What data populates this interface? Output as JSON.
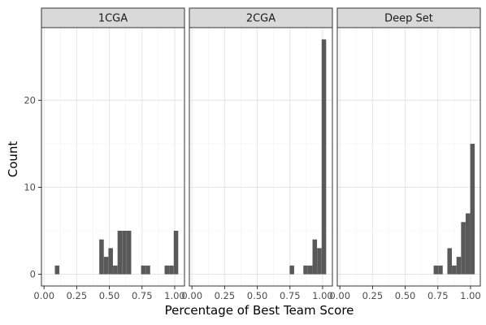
{
  "chart_data": {
    "type": "bar",
    "xlabel": "Percentage of Best Team Score",
    "ylabel": "Count",
    "xlim": [
      -0.02,
      1.075
    ],
    "ylim": [
      -1.35,
      28.35
    ],
    "x_ticks": [
      0.0,
      0.25,
      0.5,
      0.75,
      1.0
    ],
    "x_tick_labels": [
      "0.00",
      "0.25",
      "0.50",
      "0.75",
      "1.00"
    ],
    "y_ticks": [
      0,
      10,
      20
    ],
    "y_tick_labels": [
      "0",
      "10",
      "20"
    ],
    "bin_width": 0.0345,
    "grid": true,
    "bar_color": "#595959",
    "strip_color": "#d9d9d9",
    "panels": [
      {
        "name": "1CGA",
        "bins": [
          {
            "x": 0.1,
            "count": 1
          },
          {
            "x": 0.44,
            "count": 4
          },
          {
            "x": 0.475,
            "count": 2
          },
          {
            "x": 0.51,
            "count": 3
          },
          {
            "x": 0.545,
            "count": 1
          },
          {
            "x": 0.58,
            "count": 5
          },
          {
            "x": 0.615,
            "count": 5
          },
          {
            "x": 0.65,
            "count": 5
          },
          {
            "x": 0.76,
            "count": 1
          },
          {
            "x": 0.795,
            "count": 1
          },
          {
            "x": 0.94,
            "count": 1
          },
          {
            "x": 0.975,
            "count": 1
          },
          {
            "x": 1.01,
            "count": 5
          }
        ]
      },
      {
        "name": "2CGA",
        "bins": [
          {
            "x": 0.765,
            "count": 1
          },
          {
            "x": 0.87,
            "count": 1
          },
          {
            "x": 0.905,
            "count": 1
          },
          {
            "x": 0.94,
            "count": 4
          },
          {
            "x": 0.975,
            "count": 3
          },
          {
            "x": 1.01,
            "count": 27
          }
        ]
      },
      {
        "name": "Deep Set",
        "bins": [
          {
            "x": 0.735,
            "count": 1
          },
          {
            "x": 0.77,
            "count": 1
          },
          {
            "x": 0.84,
            "count": 3
          },
          {
            "x": 0.875,
            "count": 1
          },
          {
            "x": 0.91,
            "count": 2
          },
          {
            "x": 0.945,
            "count": 6
          },
          {
            "x": 0.98,
            "count": 7
          },
          {
            "x": 1.015,
            "count": 15
          }
        ]
      }
    ]
  }
}
